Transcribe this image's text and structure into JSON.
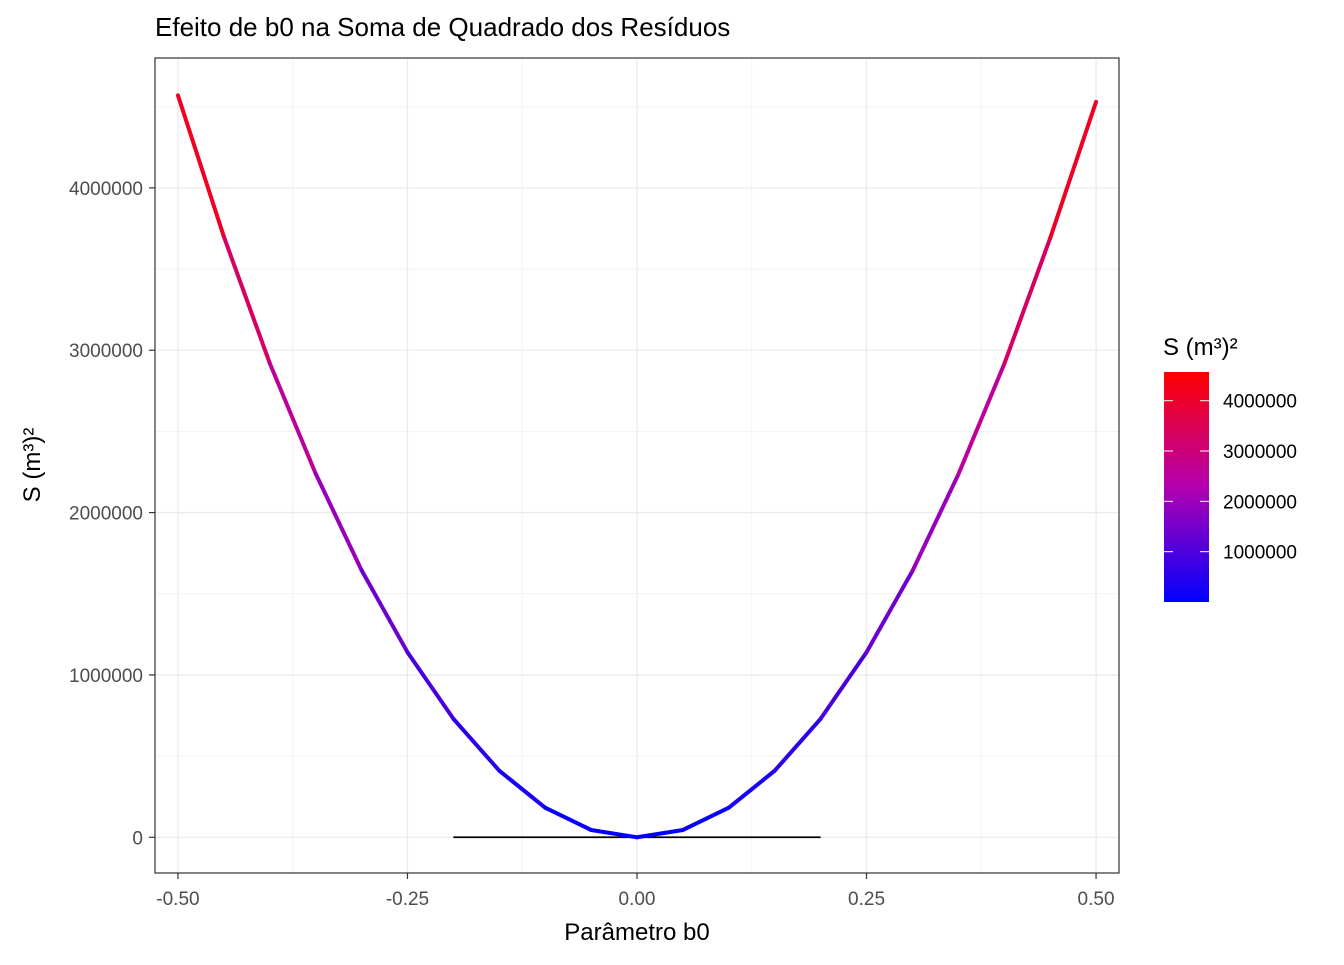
{
  "chart_data": {
    "type": "line",
    "title": "Efeito de b0 na Soma de Quadrado dos Resíduos",
    "xlabel": "Parâmetro b0",
    "ylabel": "S (m³)²",
    "xlim": [
      -0.525,
      0.525
    ],
    "ylim": [
      -220000,
      4800000
    ],
    "x_ticks": [
      -0.5,
      -0.25,
      0,
      0.25,
      0.5
    ],
    "x_tick_labels": [
      "-0.50",
      "-0.25",
      "0.00",
      "0.25",
      "0.50"
    ],
    "y_ticks": [
      0,
      1000000,
      2000000,
      3000000,
      4000000
    ],
    "y_tick_labels": [
      "0",
      "1000000",
      "2000000",
      "3000000",
      "4000000"
    ],
    "grid": true,
    "series": [
      {
        "x": [
          -0.5,
          -0.45,
          -0.4,
          -0.35,
          -0.3,
          -0.25,
          -0.2,
          -0.15,
          -0.1,
          -0.05,
          0.0,
          0.05,
          0.1,
          0.15,
          0.2,
          0.25,
          0.3,
          0.35,
          0.4,
          0.45,
          0.5
        ],
        "y": [
          4570000,
          3700000,
          2920000,
          2240000,
          1645000,
          1140000,
          730000,
          410000,
          182000,
          45000,
          0,
          45000,
          182000,
          410000,
          730000,
          1140000,
          1640000,
          2235000,
          2915000,
          3690000,
          4530000
        ]
      }
    ],
    "reference_segment": {
      "x": [
        -0.2,
        0.2
      ],
      "y": 0,
      "color": "#000000"
    },
    "legend": {
      "title": "S (m³)²",
      "position": "right",
      "labels": [
        "4000000",
        "3000000",
        "2000000",
        "1000000"
      ],
      "values": [
        4000000,
        3000000,
        2000000,
        1000000
      ],
      "min": 0,
      "max": 4570000
    },
    "colors": {
      "low": "#0000ff",
      "high": "#ff0000"
    }
  }
}
